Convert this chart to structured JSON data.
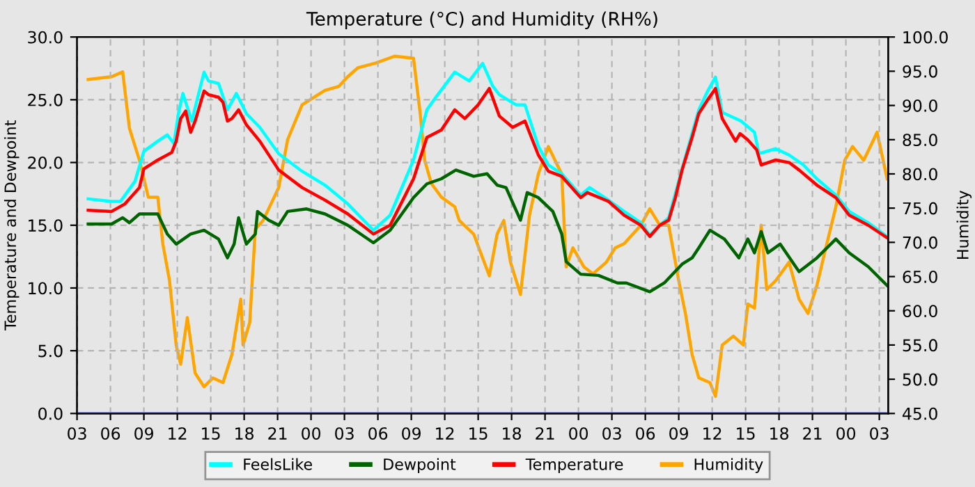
{
  "chart_data": {
    "type": "line",
    "title": "Temperature (°C) and Humidity (RH%)",
    "ylabel": "Temperature and Dewpoint",
    "y2label": "Humidity",
    "xlim": [
      3,
      75.8
    ],
    "xticks": [
      {
        "value": 3,
        "label": "03"
      },
      {
        "value": 6,
        "label": "06"
      },
      {
        "value": 9,
        "label": "09"
      },
      {
        "value": 12,
        "label": "12"
      },
      {
        "value": 15,
        "label": "15"
      },
      {
        "value": 18,
        "label": "18"
      },
      {
        "value": 21,
        "label": "21"
      },
      {
        "value": 24,
        "label": "00"
      },
      {
        "value": 27,
        "label": "03"
      },
      {
        "value": 30,
        "label": "06"
      },
      {
        "value": 33,
        "label": "09"
      },
      {
        "value": 36,
        "label": "12"
      },
      {
        "value": 39,
        "label": "15"
      },
      {
        "value": 42,
        "label": "18"
      },
      {
        "value": 45,
        "label": "21"
      },
      {
        "value": 48,
        "label": "00"
      },
      {
        "value": 51,
        "label": "03"
      },
      {
        "value": 54,
        "label": "06"
      },
      {
        "value": 57,
        "label": "09"
      },
      {
        "value": 60,
        "label": "12"
      },
      {
        "value": 63,
        "label": "15"
      },
      {
        "value": 66,
        "label": "18"
      },
      {
        "value": 69,
        "label": "21"
      },
      {
        "value": 72,
        "label": "00"
      },
      {
        "value": 75,
        "label": "03"
      }
    ],
    "ylim": [
      0,
      30
    ],
    "yticks": [
      {
        "value": 0,
        "label": "0.0"
      },
      {
        "value": 5,
        "label": "5.0"
      },
      {
        "value": 10,
        "label": "10.0"
      },
      {
        "value": 15,
        "label": "15.0"
      },
      {
        "value": 20,
        "label": "20.0"
      },
      {
        "value": 25,
        "label": "25.0"
      },
      {
        "value": 30,
        "label": "30.0"
      }
    ],
    "y2lim": [
      45,
      100
    ],
    "y2ticks": [
      {
        "value": 45,
        "label": "45.0"
      },
      {
        "value": 50,
        "label": "50.0"
      },
      {
        "value": 55,
        "label": "55.0"
      },
      {
        "value": 60,
        "label": "60.0"
      },
      {
        "value": 65,
        "label": "65.0"
      },
      {
        "value": 70,
        "label": "70.0"
      },
      {
        "value": 75,
        "label": "75.0"
      },
      {
        "value": 80,
        "label": "80.0"
      },
      {
        "value": 85,
        "label": "85.0"
      },
      {
        "value": 90,
        "label": "90.0"
      },
      {
        "value": 95,
        "label": "95.0"
      },
      {
        "value": 100,
        "label": "100.0"
      }
    ],
    "grid": true,
    "legend": "bottom",
    "line_style": "solid",
    "marker": "none",
    "ref_lines": [
      {
        "axis": "y",
        "value": 0,
        "color": "#8888dd"
      }
    ],
    "series": [
      {
        "name": "FeelsLike",
        "color": "#00ffff",
        "x": [
          4.0,
          6.1,
          6.9,
          8.2,
          9.0,
          10.25,
          11.1,
          11.7,
          12.1,
          12.5,
          12.9,
          13.3,
          14.4,
          14.8,
          15.7,
          16.5,
          17.3,
          18.2,
          19.4,
          21.1,
          23.2,
          25.25,
          27.3,
          29.6,
          31.1,
          33.2,
          34.4,
          35.2,
          36.9,
          38.2,
          39.4,
          40.3,
          40.9,
          42.4,
          43.2,
          44.4,
          45.3,
          46.5,
          48.2,
          49.0,
          50.7,
          52.1,
          53.6,
          54.4,
          55.3,
          56.1,
          57.3,
          58.8,
          59.6,
          60.3,
          60.9,
          62.6,
          63.8,
          64.2,
          65.7,
          66.9,
          68.2,
          69.4,
          71.1,
          72.3,
          74.0,
          75.7
        ],
        "values": [
          17.1,
          16.9,
          16.9,
          18.5,
          20.9,
          21.7,
          22.2,
          21.5,
          23.9,
          25.5,
          24.4,
          23.3,
          27.2,
          26.5,
          26.3,
          24.2,
          25.5,
          23.9,
          22.8,
          20.7,
          19.3,
          18.2,
          16.7,
          14.6,
          15.8,
          20.2,
          24.2,
          25.2,
          27.2,
          26.5,
          27.9,
          26.1,
          25.4,
          24.6,
          24.6,
          21.3,
          19.8,
          19.1,
          17.4,
          18.0,
          17.0,
          16.1,
          15.2,
          14.2,
          15.0,
          15.6,
          19.5,
          24.2,
          25.7,
          26.8,
          24.0,
          23.3,
          22.4,
          20.7,
          21.1,
          20.6,
          19.8,
          18.7,
          17.4,
          16.1,
          15.2,
          14.1
        ]
      },
      {
        "name": "Dewpoint",
        "color": "#006400",
        "x": [
          4.0,
          6.1,
          7.1,
          7.7,
          8.6,
          10.25,
          11.1,
          11.9,
          13.2,
          14.4,
          15.7,
          16.5,
          17.1,
          17.5,
          18.2,
          19.0,
          19.2,
          20.2,
          21.1,
          21.9,
          23.6,
          25.25,
          27.3,
          29.6,
          31.1,
          33.2,
          34.4,
          35.7,
          37.0,
          38.6,
          39.8,
          40.7,
          41.5,
          42.8,
          43.4,
          44.4,
          45.7,
          46.5,
          46.9,
          48.2,
          49.8,
          51.5,
          52.3,
          54.4,
          55.7,
          57.3,
          58.2,
          58.8,
          59.8,
          61.1,
          62.4,
          63.2,
          63.8,
          64.4,
          65.0,
          66.1,
          67.8,
          69.4,
          71.1,
          72.3,
          74.0,
          75.7
        ],
        "values": [
          15.1,
          15.1,
          15.6,
          15.2,
          15.9,
          15.9,
          14.3,
          13.5,
          14.3,
          14.6,
          13.9,
          12.4,
          13.5,
          15.6,
          13.5,
          14.3,
          16.1,
          15.4,
          15.0,
          16.1,
          16.3,
          15.9,
          15.0,
          13.6,
          14.6,
          17.2,
          18.3,
          18.7,
          19.4,
          18.9,
          19.1,
          18.2,
          18.0,
          15.4,
          17.6,
          17.2,
          16.1,
          14.3,
          12.1,
          11.1,
          11.0,
          10.4,
          10.4,
          9.7,
          10.4,
          11.9,
          12.4,
          13.2,
          14.6,
          13.9,
          12.4,
          13.9,
          12.8,
          14.5,
          12.8,
          13.5,
          11.3,
          12.4,
          13.9,
          12.8,
          11.7,
          10.2
        ]
      },
      {
        "name": "Temperature",
        "color": "#ff0000",
        "x": [
          4.0,
          6.1,
          7.3,
          8.6,
          9.0,
          10.25,
          11.5,
          11.9,
          12.3,
          12.75,
          13.2,
          13.6,
          14.4,
          14.8,
          15.7,
          16.1,
          16.5,
          16.9,
          17.5,
          18.2,
          19.4,
          21.1,
          23.2,
          25.25,
          27.3,
          29.6,
          31.1,
          33.2,
          34.4,
          35.7,
          36.9,
          37.8,
          39.0,
          40.0,
          40.9,
          42.1,
          43.2,
          44.4,
          45.3,
          46.5,
          48.2,
          48.8,
          50.7,
          52.1,
          53.6,
          54.4,
          55.3,
          56.1,
          56.7,
          57.3,
          58.2,
          58.8,
          59.6,
          60.3,
          60.9,
          62.1,
          62.5,
          63.2,
          64.0,
          64.4,
          65.7,
          66.9,
          67.8,
          69.4,
          71.1,
          72.3,
          74.0,
          75.7
        ],
        "values": [
          16.2,
          16.1,
          16.7,
          18.0,
          19.5,
          20.2,
          20.8,
          21.7,
          23.5,
          24.1,
          22.4,
          23.3,
          25.7,
          25.4,
          25.2,
          24.8,
          23.3,
          23.5,
          24.2,
          23.0,
          21.7,
          19.4,
          18.0,
          17.0,
          15.9,
          14.3,
          15.0,
          18.7,
          22.0,
          22.6,
          24.2,
          23.5,
          24.6,
          25.9,
          23.7,
          22.8,
          23.3,
          20.6,
          19.3,
          18.9,
          17.2,
          17.6,
          16.9,
          15.8,
          15.0,
          14.1,
          15.0,
          15.4,
          17.2,
          19.4,
          22.0,
          23.9,
          25.0,
          25.9,
          23.5,
          21.7,
          22.3,
          21.8,
          21.0,
          19.8,
          20.2,
          20.0,
          19.4,
          18.2,
          17.2,
          15.8,
          15.0,
          14.0
        ]
      },
      {
        "name": "Humidity",
        "color": "#ffa500",
        "axis": "y2",
        "x": [
          4.0,
          6.1,
          7.1,
          7.7,
          8.6,
          9.0,
          9.4,
          10.25,
          10.7,
          11.3,
          11.9,
          12.3,
          12.9,
          13.6,
          14.4,
          15.2,
          16.1,
          16.9,
          17.7,
          17.9,
          18.5,
          19.0,
          19.7,
          21.1,
          21.9,
          23.2,
          25.25,
          26.5,
          27.3,
          28.2,
          29.8,
          31.5,
          33.2,
          33.8,
          34.2,
          34.8,
          35.7,
          36.9,
          37.3,
          38.6,
          40.0,
          40.7,
          41.3,
          41.9,
          42.8,
          43.6,
          44.4,
          45.3,
          46.1,
          46.5,
          46.9,
          47.5,
          48.5,
          49.3,
          50.5,
          51.3,
          52.1,
          53.6,
          54.4,
          55.3,
          56.1,
          57.0,
          57.6,
          58.2,
          58.8,
          59.8,
          60.3,
          60.9,
          61.9,
          62.8,
          63.2,
          63.8,
          64.4,
          64.9,
          65.7,
          66.9,
          67.8,
          68.6,
          69.4,
          70.2,
          71.1,
          71.9,
          72.6,
          73.6,
          74.4,
          74.8,
          75.7
        ],
        "values": [
          93.8,
          94.2,
          94.9,
          86.7,
          82.0,
          79.3,
          76.6,
          76.6,
          69.8,
          64.4,
          55.0,
          52.2,
          59.0,
          50.9,
          48.9,
          50.2,
          49.5,
          53.6,
          61.7,
          55.0,
          58.3,
          71.9,
          73.2,
          78.0,
          85.0,
          90.1,
          92.2,
          92.8,
          94.2,
          95.5,
          96.2,
          97.2,
          96.9,
          88.8,
          82.0,
          78.6,
          76.6,
          75.2,
          73.2,
          71.2,
          65.1,
          71.2,
          73.2,
          67.1,
          62.4,
          73.9,
          80.0,
          84.0,
          81.3,
          80.0,
          66.4,
          69.2,
          66.4,
          65.4,
          67.1,
          69.2,
          69.8,
          72.5,
          74.9,
          72.5,
          72.5,
          64.4,
          59.6,
          53.6,
          50.2,
          49.5,
          47.5,
          55.0,
          56.3,
          55.0,
          61.0,
          60.4,
          72.5,
          63.1,
          64.4,
          67.1,
          61.7,
          59.6,
          63.7,
          69.2,
          75.2,
          82.0,
          84.0,
          82.0,
          84.7,
          86.1,
          79.3
        ]
      }
    ]
  }
}
